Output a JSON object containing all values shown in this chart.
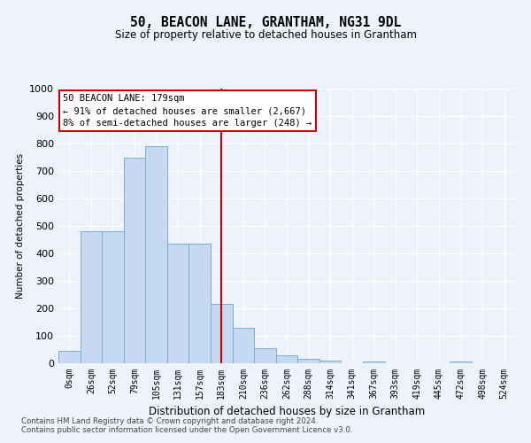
{
  "title": "50, BEACON LANE, GRANTHAM, NG31 9DL",
  "subtitle": "Size of property relative to detached houses in Grantham",
  "xlabel": "Distribution of detached houses by size in Grantham",
  "ylabel": "Number of detached properties",
  "bar_color": "#c6d9f0",
  "bar_edge_color": "#7aadd4",
  "categories": [
    "0sqm",
    "26sqm",
    "52sqm",
    "79sqm",
    "105sqm",
    "131sqm",
    "157sqm",
    "183sqm",
    "210sqm",
    "236sqm",
    "262sqm",
    "288sqm",
    "314sqm",
    "341sqm",
    "367sqm",
    "393sqm",
    "419sqm",
    "445sqm",
    "472sqm",
    "498sqm",
    "524sqm"
  ],
  "values": [
    45,
    480,
    480,
    750,
    790,
    435,
    435,
    215,
    130,
    55,
    30,
    15,
    10,
    0,
    8,
    0,
    0,
    0,
    7,
    0,
    0
  ],
  "ylim": [
    0,
    1000
  ],
  "yticks": [
    0,
    100,
    200,
    300,
    400,
    500,
    600,
    700,
    800,
    900,
    1000
  ],
  "vline_index": 7,
  "vline_color": "#cc0000",
  "annotation_text": "50 BEACON LANE: 179sqm\n← 91% of detached houses are smaller (2,667)\n8% of semi-detached houses are larger (248) →",
  "annotation_box_color": "#ffffff",
  "annotation_box_edge": "#cc0000",
  "footer_line1": "Contains HM Land Registry data © Crown copyright and database right 2024.",
  "footer_line2": "Contains public sector information licensed under the Open Government Licence v3.0.",
  "background_color": "#eef2fa",
  "grid_color": "#ffffff"
}
